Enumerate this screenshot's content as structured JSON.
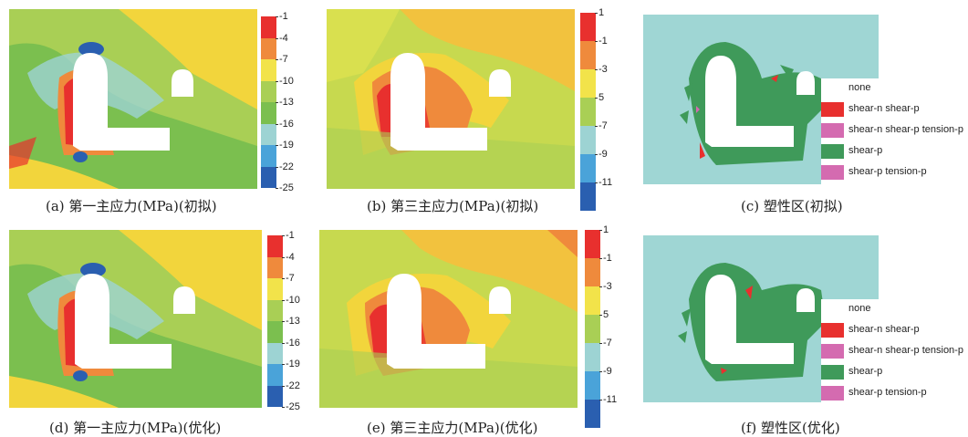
{
  "panels": [
    {
      "caption": "(a) 第一主应力(MPa)(初拟)"
    },
    {
      "caption": "(b) 第三主应力(MPa)(初拟)"
    },
    {
      "caption": "(c) 塑性区(初拟)"
    },
    {
      "caption": "(d) 第一主应力(MPa)(优化)"
    },
    {
      "caption": "(e) 第三主应力(MPa)(优化)"
    },
    {
      "caption": "(f) 塑性区(优化)"
    }
  ],
  "colorbar_first": {
    "ticks": [
      "-1",
      "-4",
      "-7",
      "-10",
      "-13",
      "-16",
      "-19",
      "-22",
      "-25"
    ],
    "colors": [
      "#e8302e",
      "#ef8a3c",
      "#f2e34a",
      "#a9cf55",
      "#7bbf4f",
      "#9dd3d3",
      "#4aa3d9",
      "#2a5fb0"
    ]
  },
  "colorbar_third": {
    "ticks": [
      "1",
      "-1",
      "-3",
      "5",
      "-7",
      "-9",
      "-11"
    ],
    "colors": [
      "#e8302e",
      "#ef8a3c",
      "#f2e34a",
      "#a9cf55",
      "#9dd3d3",
      "#4aa3d9",
      "#2a5fb0"
    ]
  },
  "legend": {
    "items": [
      {
        "label": "none",
        "color": "#ffffff"
      },
      {
        "label": "shear-n shear-p",
        "color": "#e8302e"
      },
      {
        "label": "shear-n shear-p tension-p",
        "color": "#d46bb0"
      },
      {
        "label": "shear-p",
        "color": "#3f9a5a"
      },
      {
        "label": "shear-p tension-p",
        "color": "#d46bb0"
      }
    ]
  },
  "colors": {
    "plastic_background": "#9fd6d4",
    "plastic_zone": "#3f9a5a",
    "cavern": "#ffffff"
  }
}
